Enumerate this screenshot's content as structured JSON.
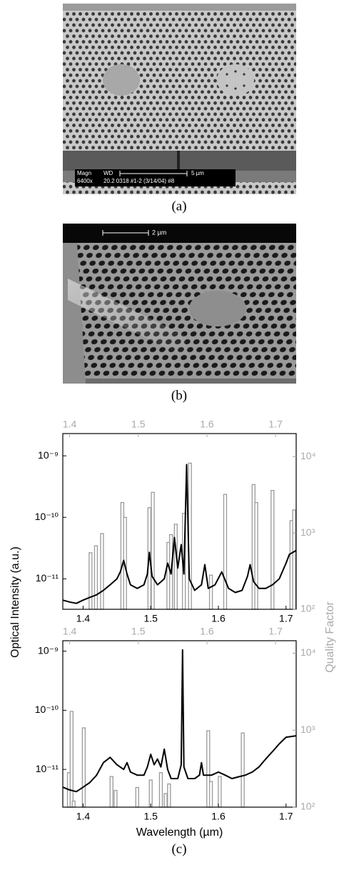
{
  "images": {
    "a": {
      "label": "(a)",
      "magn": "Magn",
      "wd": "WD",
      "scale": "5 µm",
      "mag_value": "6400x",
      "info": "20.2 0318 #1-2 (3/14/04) #8"
    },
    "b": {
      "label": "(b)",
      "scale": "2 µm"
    }
  },
  "caption_c": "(c)",
  "chart_data": [
    {
      "type": "line",
      "ylabel": "Optical Intensity (a.u.)",
      "y2label": "Quality Factor",
      "xlim": [
        1.37,
        1.715
      ],
      "xticks": [
        1.4,
        1.5,
        1.6,
        1.7
      ],
      "x2lim": [
        1.39,
        1.73
      ],
      "x2ticks": [
        1.4,
        1.5,
        1.6,
        1.7
      ],
      "x2color": "#aaaaaa",
      "ylog": true,
      "ylim": [
        3.2e-12,
        2.3e-09
      ],
      "yticks": [
        {
          "value": 1e-09,
          "label": "10⁻⁹"
        },
        {
          "value": 1e-10,
          "label": "10⁻¹⁰"
        },
        {
          "value": 1e-11,
          "label": "10⁻¹¹"
        }
      ],
      "y2log": true,
      "y2lim": [
        100,
        20000
      ],
      "y2ticks": [
        {
          "value": 100,
          "label": "10²"
        },
        {
          "value": 1000,
          "label": "10³"
        },
        {
          "value": 10000,
          "label": "10⁴"
        }
      ],
      "series": [
        {
          "type": "bar",
          "axis": "y2",
          "color": "#9a9a9a",
          "x": [
            1.411,
            1.419,
            1.428,
            1.458,
            1.462,
            1.498,
            1.503,
            1.526,
            1.53,
            1.537,
            1.549,
            1.558,
            1.589,
            1.61,
            1.652,
            1.656,
            1.68,
            1.708,
            1.712
          ],
          "values": [
            550,
            680,
            980,
            2500,
            1600,
            2140,
            3400,
            750,
            950,
            1300,
            1800,
            8200,
            280,
            3200,
            4300,
            2500,
            3600,
            1450,
            2000
          ]
        },
        {
          "type": "line",
          "color": "#000000",
          "x": [
            1.37,
            1.38,
            1.39,
            1.4,
            1.41,
            1.42,
            1.43,
            1.44,
            1.45,
            1.455,
            1.46,
            1.465,
            1.47,
            1.48,
            1.49,
            1.495,
            1.498,
            1.502,
            1.51,
            1.52,
            1.525,
            1.53,
            1.535,
            1.54,
            1.545,
            1.549,
            1.553,
            1.557,
            1.565,
            1.575,
            1.58,
            1.585,
            1.595,
            1.605,
            1.615,
            1.625,
            1.635,
            1.643,
            1.647,
            1.652,
            1.66,
            1.67,
            1.68,
            1.69,
            1.7,
            1.705,
            1.715
          ],
          "values": [
            4.5e-12,
            4.2e-12,
            4e-12,
            4.5e-12,
            5e-12,
            5.5e-12,
            6.5e-12,
            8e-12,
            1e-11,
            1.3e-11,
            2e-11,
            1.2e-11,
            8e-12,
            7e-12,
            8e-12,
            1.2e-11,
            2.7e-11,
            1.1e-11,
            8e-12,
            1e-11,
            1.8e-11,
            1.2e-11,
            4.7e-11,
            1.5e-11,
            3.6e-11,
            1.2e-11,
            7.2e-10,
            1e-11,
            6.5e-12,
            8e-12,
            1.7e-11,
            7e-12,
            8e-12,
            1.3e-11,
            7e-12,
            6e-12,
            6.5e-12,
            1.1e-11,
            1.7e-11,
            9e-12,
            7e-12,
            7e-12,
            8e-12,
            1e-11,
            1.8e-11,
            2.5e-11,
            2.9e-11
          ]
        }
      ]
    },
    {
      "type": "line",
      "xlabel": "Wavelength (µm)",
      "xlim": [
        1.37,
        1.715
      ],
      "xticks": [
        1.4,
        1.5,
        1.6,
        1.7
      ],
      "x2lim": [
        1.39,
        1.73
      ],
      "x2ticks": [
        1.4,
        1.5,
        1.6,
        1.7
      ],
      "x2color": "#aaaaaa",
      "ylog": true,
      "ylim": [
        2.3e-12,
        1.5e-09
      ],
      "yticks": [
        {
          "value": 1e-09,
          "label": "10⁻⁹"
        },
        {
          "value": 1e-10,
          "label": "10⁻¹⁰"
        },
        {
          "value": 1e-11,
          "label": "10⁻¹¹"
        }
      ],
      "y2log": true,
      "y2lim": [
        100,
        14500
      ],
      "y2ticks": [
        {
          "value": 100,
          "label": "10²"
        },
        {
          "value": 1000,
          "label": "10³"
        },
        {
          "value": 10000,
          "label": "10⁴"
        }
      ],
      "series": [
        {
          "type": "bar",
          "axis": "y2",
          "color": "#9a9a9a",
          "x": [
            1.379,
            1.383,
            1.386,
            1.401,
            1.442,
            1.448,
            1.48,
            1.5,
            1.515,
            1.522,
            1.527,
            1.585,
            1.589,
            1.602,
            1.636
          ],
          "values": [
            280,
            1750,
            120,
            1070,
            250,
            165,
            180,
            225,
            280,
            150,
            200,
            980,
            215,
            250,
            920
          ]
        },
        {
          "type": "line",
          "color": "#000000",
          "x": [
            1.37,
            1.38,
            1.39,
            1.4,
            1.41,
            1.42,
            1.43,
            1.44,
            1.45,
            1.46,
            1.465,
            1.47,
            1.48,
            1.49,
            1.495,
            1.5,
            1.505,
            1.51,
            1.515,
            1.52,
            1.525,
            1.53,
            1.54,
            1.545,
            1.547,
            1.549,
            1.555,
            1.565,
            1.572,
            1.575,
            1.578,
            1.59,
            1.6,
            1.61,
            1.62,
            1.63,
            1.64,
            1.65,
            1.66,
            1.67,
            1.68,
            1.69,
            1.7,
            1.715
          ],
          "values": [
            5e-12,
            4.5e-12,
            4.2e-12,
            5e-12,
            6e-12,
            8e-12,
            1.3e-11,
            1.6e-11,
            1.2e-11,
            1e-11,
            1.3e-11,
            9e-12,
            8e-12,
            8e-12,
            1.1e-11,
            1.8e-11,
            1.2e-11,
            1.5e-11,
            1.1e-11,
            2.2e-11,
            1e-11,
            7e-12,
            7e-12,
            1.2e-11,
            1.05e-09,
            1.1e-11,
            7e-12,
            7e-12,
            8e-12,
            1.3e-11,
            8e-12,
            8e-12,
            9e-12,
            8e-12,
            7e-12,
            7.5e-12,
            8e-12,
            9e-12,
            1.1e-11,
            1.5e-11,
            2e-11,
            2.7e-11,
            3.5e-11,
            3.7e-11
          ]
        }
      ]
    }
  ]
}
